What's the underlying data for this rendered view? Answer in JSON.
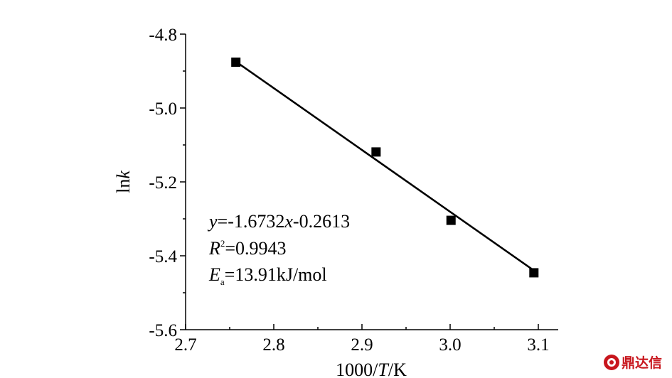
{
  "chart_data": {
    "type": "scatter",
    "xlabel": {
      "prefix": "1000/",
      "var": "T",
      "suffix": "/K"
    },
    "ylabel": {
      "prefix": "ln",
      "var": "k"
    },
    "xlim": [
      2.7,
      3.12
    ],
    "ylim": [
      -5.6,
      -4.8
    ],
    "x_ticks": [
      2.7,
      2.8,
      2.9,
      3.0,
      3.1
    ],
    "x_tick_labels": [
      "2.7",
      "2.8",
      "2.9",
      "3.0",
      "3.1"
    ],
    "y_ticks": [
      -5.6,
      -5.4,
      -5.2,
      -5.0,
      -4.8
    ],
    "y_tick_labels": [
      "-5.6",
      "-5.4",
      "-5.2",
      "-5.0",
      "-4.8"
    ],
    "grid": false,
    "series": [
      {
        "marker": "square",
        "x": [
          2.757,
          2.916,
          3.001,
          3.095
        ],
        "y": [
          -4.876,
          -5.119,
          -5.304,
          -5.446
        ]
      }
    ],
    "fit_line": {
      "slope": -1.6732,
      "intercept": -0.2613,
      "x_range": [
        2.757,
        3.095
      ]
    },
    "annotations": {
      "equation": {
        "var_y": "y",
        "part1": "=-1.6732",
        "var_x": "x",
        "part2": "-0.2613"
      },
      "r2": {
        "var": "R",
        "sup": "2",
        "value": "=0.9943"
      },
      "ea": {
        "var": "E",
        "sub": "a",
        "value": "=13.91kJ/mol"
      }
    }
  },
  "watermark": {
    "text": "鼎达信",
    "color": "#c8161d"
  }
}
